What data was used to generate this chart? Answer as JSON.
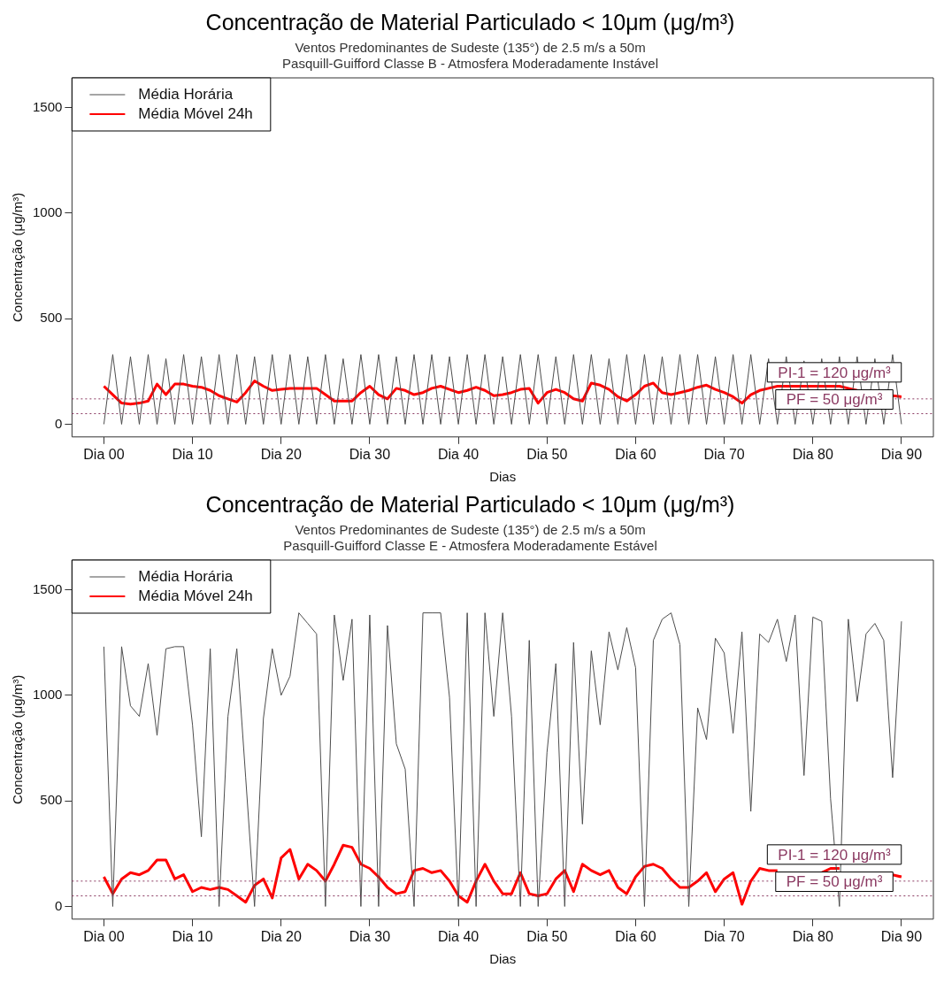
{
  "chart_data": [
    {
      "type": "line",
      "title": "Concentração de Material Particulado < 10μm (μg/m³)",
      "subtitle": "Ventos Predominantes de Sudeste (135°) de 2.5 m/s a 50m\nPasquill-Guifford Classe B - Atmosfera Moderadamente Instável",
      "xlabel": "Dias",
      "ylabel": "Concentração (μg/m³)",
      "legend": "top left",
      "categories": [
        "Dia 00",
        null,
        null,
        null,
        null,
        null,
        null,
        null,
        null,
        null,
        "Dia 10",
        null,
        null,
        null,
        null,
        null,
        null,
        null,
        null,
        null,
        "Dia 20",
        null,
        null,
        null,
        null,
        null,
        null,
        null,
        null,
        null,
        "Dia 30",
        null,
        null,
        null,
        null,
        null,
        null,
        null,
        null,
        null,
        "Dia 40",
        null,
        null,
        null,
        null,
        null,
        null,
        null,
        null,
        null,
        "Dia 50",
        null,
        null,
        null,
        null,
        null,
        null,
        null,
        null,
        null,
        "Dia 60",
        null,
        null,
        null,
        null,
        null,
        null,
        null,
        null,
        null,
        "Dia 70",
        null,
        null,
        null,
        null,
        null,
        null,
        null,
        null,
        null,
        "Dia 80",
        null,
        null,
        null,
        null,
        null,
        null,
        null,
        null,
        null,
        "Dia 90"
      ],
      "ylim": [
        -60,
        1640
      ],
      "yticks": [
        0,
        500,
        1000,
        1500
      ],
      "ref_lines": [
        {
          "axis": "y",
          "value": 120,
          "label": "PI-1 = 120 μg/m³",
          "color": "#8b3a62",
          "line_style": "dotted"
        },
        {
          "axis": "y",
          "value": 50,
          "label": "PF = 50 μg/m³",
          "color": "#8b3a62",
          "line_style": "dotted"
        }
      ],
      "series": [
        {
          "name": "Média Horária",
          "color": "#4d4d4d",
          "values": [
            0,
            330,
            0,
            320,
            0,
            330,
            0,
            310,
            0,
            330,
            0,
            320,
            0,
            330,
            0,
            330,
            0,
            320,
            0,
            330,
            0,
            330,
            0,
            320,
            0,
            330,
            0,
            310,
            0,
            330,
            0,
            330,
            0,
            320,
            0,
            330,
            0,
            330,
            0,
            320,
            0,
            330,
            0,
            330,
            0,
            320,
            0,
            330,
            0,
            330,
            0,
            320,
            0,
            330,
            0,
            330,
            0,
            310,
            0,
            330,
            0,
            330,
            0,
            320,
            0,
            330,
            0,
            330,
            0,
            320,
            0,
            330,
            0,
            330,
            0,
            310,
            0,
            320,
            0,
            300,
            0,
            310,
            0,
            320,
            0,
            320,
            0,
            310,
            0,
            330,
            0
          ]
        },
        {
          "name": "Média Móvel 24h",
          "color": "#ff0000",
          "values": [
            180,
            140,
            100,
            95,
            100,
            110,
            190,
            140,
            190,
            190,
            180,
            175,
            160,
            135,
            120,
            105,
            150,
            205,
            180,
            160,
            165,
            170,
            170,
            170,
            170,
            140,
            110,
            110,
            110,
            150,
            180,
            140,
            120,
            170,
            160,
            140,
            150,
            170,
            180,
            165,
            150,
            160,
            175,
            160,
            135,
            140,
            150,
            165,
            170,
            100,
            150,
            165,
            150,
            120,
            110,
            195,
            185,
            165,
            130,
            110,
            140,
            180,
            195,
            150,
            140,
            150,
            160,
            175,
            185,
            165,
            150,
            130,
            100,
            140,
            160,
            170,
            180,
            180,
            180,
            180,
            180,
            180,
            180,
            180,
            170,
            160,
            null,
            null,
            null,
            135,
            130
          ]
        }
      ]
    },
    {
      "type": "line",
      "title": "Concentração de Material Particulado < 10μm (μg/m³)",
      "subtitle": "Ventos Predominantes de Sudeste (135°) de 2.5 m/s a 50m\nPasquill-Guifford Classe E - Atmosfera Moderadamente Estável",
      "xlabel": "Dias",
      "ylabel": "Concentração (μg/m³)",
      "legend": "top left",
      "categories": [
        "Dia 00",
        null,
        null,
        null,
        null,
        null,
        null,
        null,
        null,
        null,
        "Dia 10",
        null,
        null,
        null,
        null,
        null,
        null,
        null,
        null,
        null,
        "Dia 20",
        null,
        null,
        null,
        null,
        null,
        null,
        null,
        null,
        null,
        "Dia 30",
        null,
        null,
        null,
        null,
        null,
        null,
        null,
        null,
        null,
        "Dia 40",
        null,
        null,
        null,
        null,
        null,
        null,
        null,
        null,
        null,
        "Dia 50",
        null,
        null,
        null,
        null,
        null,
        null,
        null,
        null,
        null,
        "Dia 60",
        null,
        null,
        null,
        null,
        null,
        null,
        null,
        null,
        null,
        "Dia 70",
        null,
        null,
        null,
        null,
        null,
        null,
        null,
        null,
        null,
        "Dia 80",
        null,
        null,
        null,
        null,
        null,
        null,
        null,
        null,
        null,
        "Dia 90"
      ],
      "ylim": [
        -60,
        1640
      ],
      "yticks": [
        0,
        500,
        1000,
        1500
      ],
      "ref_lines": [
        {
          "axis": "y",
          "value": 120,
          "label": "PI-1 = 120 μg/m³",
          "color": "#8b3a62",
          "line_style": "dotted"
        },
        {
          "axis": "y",
          "value": 50,
          "label": "PF = 50 μg/m³",
          "color": "#8b3a62",
          "line_style": "dotted"
        }
      ],
      "series": [
        {
          "name": "Média Horária",
          "color": "#4d4d4d",
          "values": [
            1230,
            0,
            1230,
            950,
            900,
            1150,
            810,
            1220,
            1230,
            1230,
            860,
            330,
            1220,
            0,
            900,
            1220,
            610,
            0,
            890,
            1220,
            1000,
            1090,
            1390,
            1340,
            1290,
            0,
            1380,
            1070,
            1360,
            0,
            1380,
            0,
            1330,
            770,
            650,
            0,
            1390,
            1390,
            1390,
            990,
            0,
            1390,
            0,
            1390,
            900,
            1390,
            900,
            0,
            1260,
            0,
            730,
            1150,
            0,
            1250,
            390,
            1210,
            860,
            1300,
            1120,
            1320,
            1130,
            0,
            1260,
            1360,
            1390,
            1240,
            0,
            940,
            790,
            1270,
            1200,
            820,
            1300,
            450,
            1290,
            1250,
            1360,
            1160,
            1380,
            620,
            1370,
            1350,
            510,
            0,
            1360,
            970,
            1290,
            1340,
            1260,
            610,
            1350
          ]
        },
        {
          "name": "Média Móvel 24h",
          "color": "#ff0000",
          "values": [
            140,
            60,
            130,
            160,
            150,
            170,
            220,
            220,
            130,
            150,
            70,
            90,
            80,
            90,
            80,
            50,
            20,
            100,
            130,
            40,
            230,
            270,
            130,
            200,
            170,
            120,
            200,
            290,
            280,
            200,
            180,
            140,
            90,
            60,
            70,
            170,
            180,
            160,
            170,
            120,
            50,
            20,
            120,
            200,
            120,
            60,
            60,
            160,
            60,
            50,
            60,
            130,
            170,
            70,
            200,
            170,
            150,
            170,
            90,
            60,
            140,
            190,
            200,
            180,
            130,
            90,
            90,
            120,
            160,
            70,
            130,
            160,
            10,
            120,
            180,
            170,
            170,
            null,
            null,
            null,
            null,
            160,
            180,
            180,
            null,
            null,
            null,
            null,
            null,
            150,
            140
          ]
        }
      ]
    }
  ]
}
